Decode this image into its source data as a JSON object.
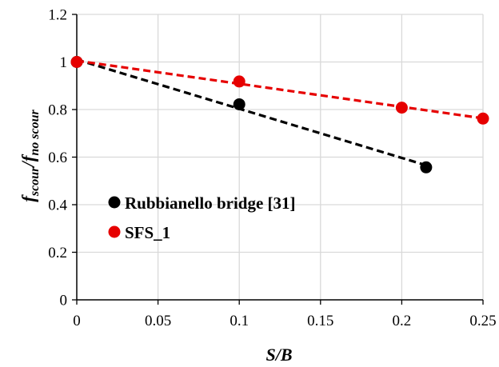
{
  "chart_data": {
    "type": "scatter",
    "xlim": [
      0,
      0.25
    ],
    "ylim": [
      0,
      1.2
    ],
    "x_ticks": [
      "0",
      "0.05",
      "0.1",
      "0.15",
      "0.2",
      "0.25"
    ],
    "y_ticks": [
      "0",
      "0.2",
      "0.4",
      "0.6",
      "0.8",
      "1",
      "1.2"
    ],
    "grid": true,
    "xlabel": "S/B",
    "ylabel": {
      "f1": "f",
      "sub1": "scour",
      "slash": "/",
      "f2": "f",
      "sub2": "no scour"
    },
    "legend_position": "lower-left",
    "series": [
      {
        "name": "Rubbianello bridge [31]",
        "color": "#000000",
        "x": [
          0,
          0.1,
          0.215
        ],
        "y": [
          1.0,
          0.822,
          0.557
        ],
        "trendline": "dashed"
      },
      {
        "name": "SFS_1",
        "color": "#e60000",
        "x": [
          0,
          0.1,
          0.2,
          0.25
        ],
        "y": [
          1.0,
          0.918,
          0.808,
          0.762
        ],
        "trendline": "dashed"
      }
    ]
  }
}
